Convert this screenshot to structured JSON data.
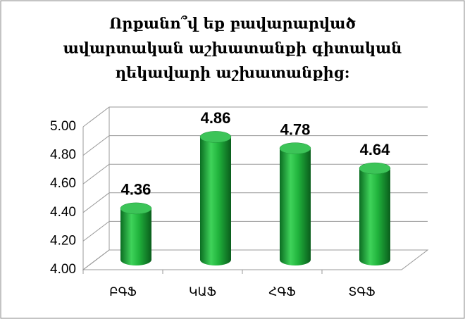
{
  "chart_data": {
    "type": "bar",
    "title": [
      "Որքանո՞վ եք բավարարված",
      "ավարտական աշխատանքի  գիտական",
      "ղեկավարի աշխատանքից:"
    ],
    "categories": [
      "ԲԳՖ",
      "ԿԱՖ",
      "ՀԳՖ",
      "ՏԳՖ"
    ],
    "values": [
      4.36,
      4.86,
      4.78,
      4.64
    ],
    "color": "#1fa33a",
    "ylim": [
      4,
      5
    ],
    "yticks": [
      {
        "value": 4,
        "label": "4.00"
      },
      {
        "value": 4.2,
        "label": "4.20"
      },
      {
        "value": 4.4,
        "label": "4.40"
      },
      {
        "value": 4.6,
        "label": "4.60"
      },
      {
        "value": 4.8,
        "label": "4.80"
      },
      {
        "value": 5,
        "label": "5.00"
      }
    ],
    "grid": true
  }
}
